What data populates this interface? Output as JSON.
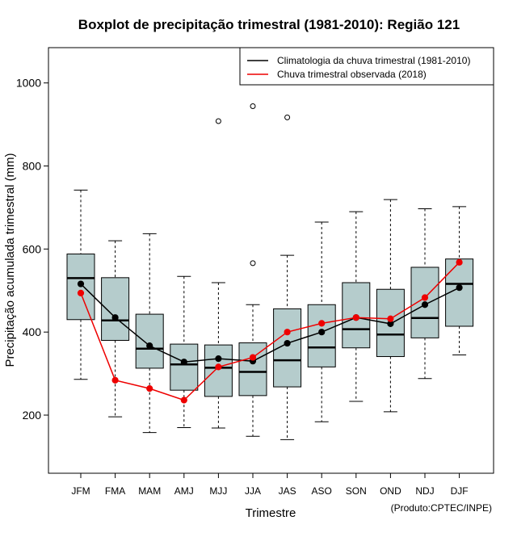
{
  "chart_data": {
    "type": "boxplot",
    "title": "Boxplot de precipitação trimestral (1981-2010): Região 121",
    "xlabel": "Trimestre",
    "ylabel": "Precipitação acumulada trimestral (mm)",
    "credit": "(Produto:CPTEC/INPE)",
    "ylim": [
      60,
      1085
    ],
    "yticks": [
      200,
      400,
      600,
      800,
      1000
    ],
    "categories": [
      "JFM",
      "FMA",
      "MAM",
      "AMJ",
      "MJJ",
      "JJA",
      "JAS",
      "ASO",
      "SON",
      "OND",
      "NDJ",
      "DJF"
    ],
    "boxes": [
      {
        "min": 286,
        "q1": 430,
        "median": 530,
        "q3": 588,
        "max": 742,
        "outliers": []
      },
      {
        "min": 196,
        "q1": 380,
        "median": 428,
        "q3": 531,
        "max": 620,
        "outliers": []
      },
      {
        "min": 158,
        "q1": 313,
        "median": 360,
        "q3": 443,
        "max": 637,
        "outliers": []
      },
      {
        "min": 170,
        "q1": 260,
        "median": 322,
        "q3": 371,
        "max": 534,
        "outliers": []
      },
      {
        "min": 169,
        "q1": 245,
        "median": 314,
        "q3": 369,
        "max": 519,
        "outliers": [
          908
        ]
      },
      {
        "min": 149,
        "q1": 247,
        "median": 304,
        "q3": 374,
        "max": 466,
        "outliers": [
          566,
          944
        ]
      },
      {
        "min": 141,
        "q1": 268,
        "median": 332,
        "q3": 456,
        "max": 585,
        "outliers": [
          917
        ]
      },
      {
        "min": 184,
        "q1": 316,
        "median": 363,
        "q3": 466,
        "max": 665,
        "outliers": []
      },
      {
        "min": 233,
        "q1": 362,
        "median": 407,
        "q3": 519,
        "max": 690,
        "outliers": []
      },
      {
        "min": 208,
        "q1": 341,
        "median": 394,
        "q3": 503,
        "max": 719,
        "outliers": []
      },
      {
        "min": 288,
        "q1": 386,
        "median": 434,
        "q3": 556,
        "max": 697,
        "outliers": []
      },
      {
        "min": 345,
        "q1": 414,
        "median": 516,
        "q3": 576,
        "max": 702,
        "outliers": []
      }
    ],
    "series": [
      {
        "name": "Climatologia da chuva trimestral (1981-2010)",
        "color": "#000000",
        "values": [
          516,
          435,
          367,
          328,
          336,
          330,
          373,
          400,
          435,
          420,
          466,
          507
        ]
      },
      {
        "name": "Chuva trimestral observada (2018)",
        "color": "#ee0000",
        "values": [
          494,
          284,
          264,
          236,
          316,
          339,
          400,
          421,
          435,
          432,
          483,
          568
        ]
      }
    ],
    "box_fill": "#b5cccc",
    "legend_position": "top-right"
  }
}
